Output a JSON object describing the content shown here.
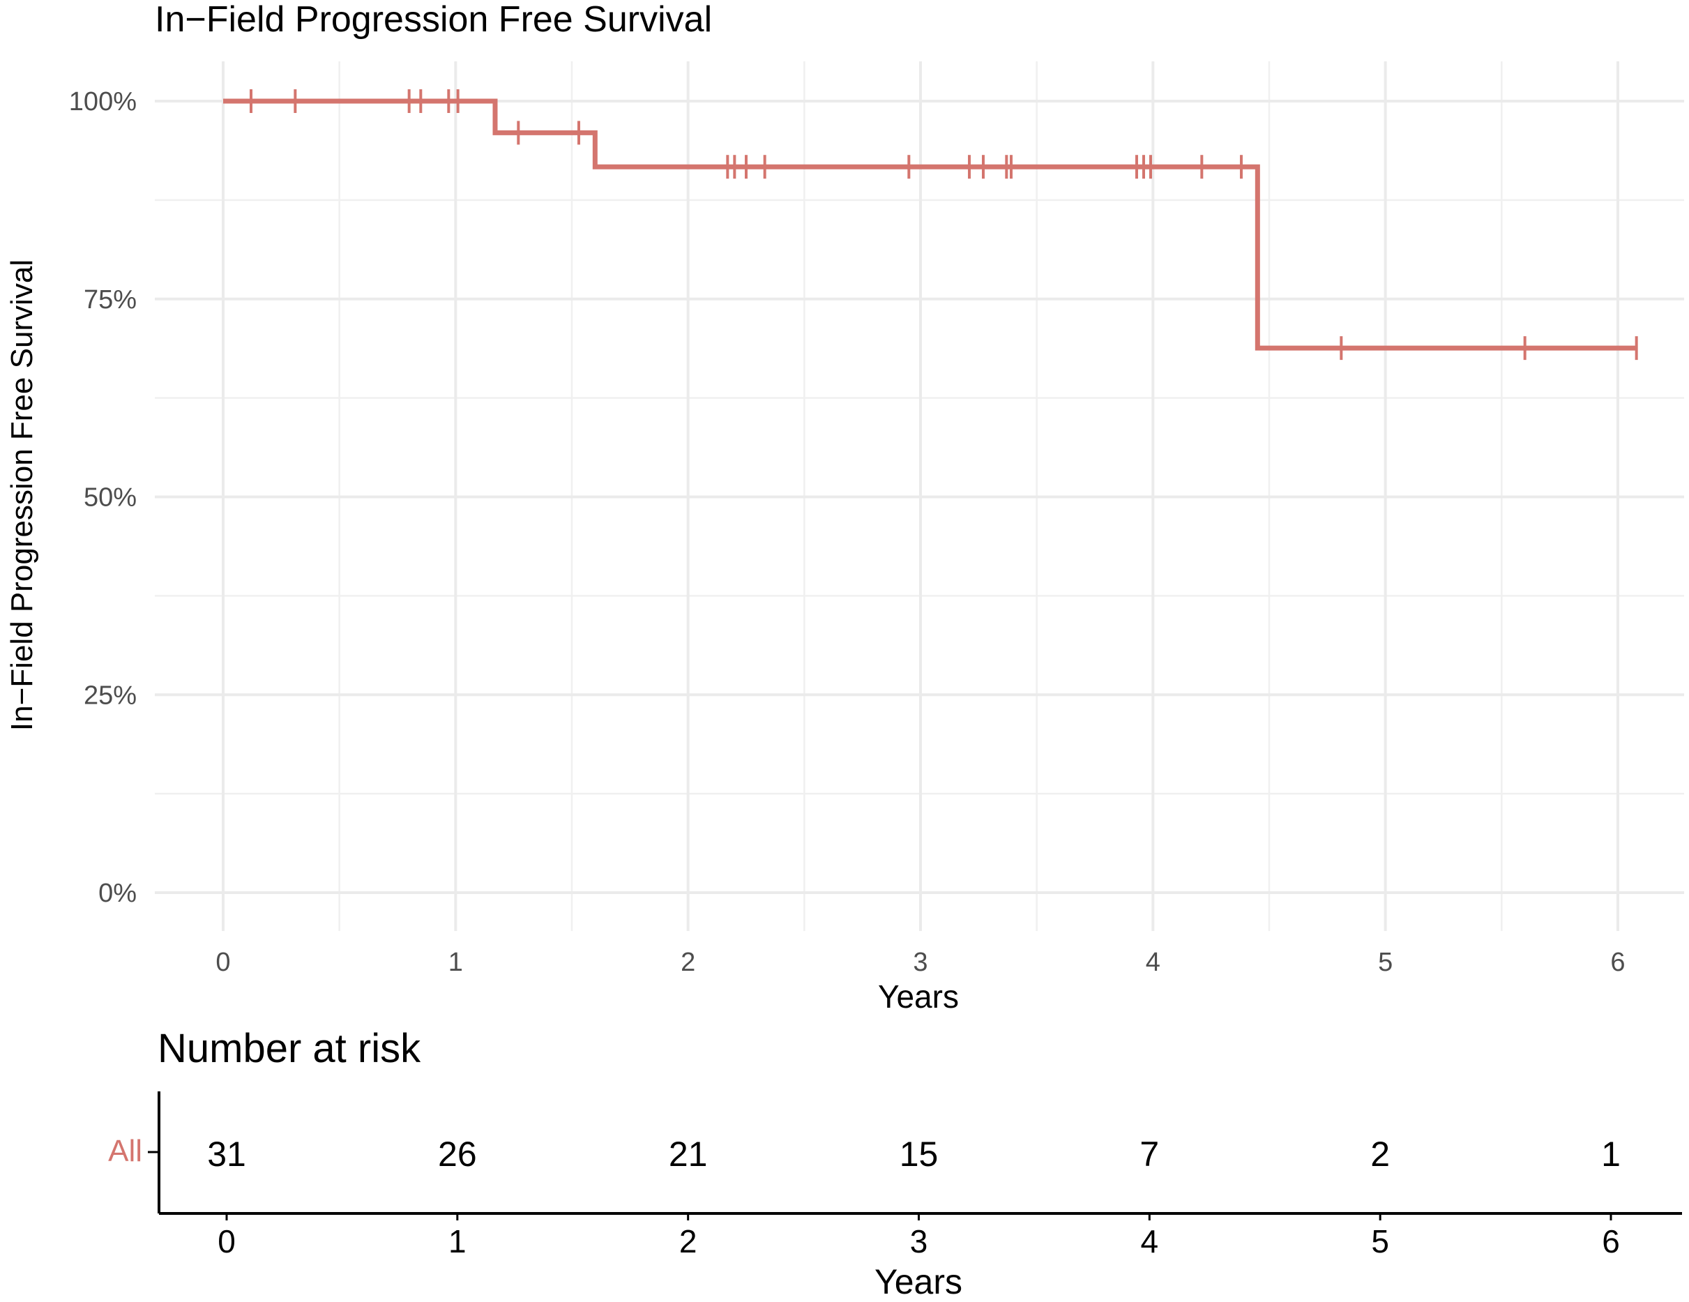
{
  "chart_data": [
    {
      "type": "line",
      "title": "In−Field Progression Free Survival",
      "xlabel": "Years",
      "ylabel": "In−Field Progression Free Survival",
      "xlim": [
        0,
        6
      ],
      "ylim": [
        0,
        1
      ],
      "x_ticks": [
        0,
        1,
        2,
        3,
        4,
        5,
        6
      ],
      "x_tick_labels": [
        "0",
        "1",
        "2",
        "3",
        "4",
        "5",
        "6"
      ],
      "y_ticks": [
        0,
        0.25,
        0.5,
        0.75,
        1.0
      ],
      "y_tick_labels": [
        "0%",
        "25%",
        "50%",
        "75%",
        "100%"
      ],
      "grid": true,
      "series": [
        {
          "name": "All",
          "color": "#d4756e",
          "steps": [
            {
              "x": 0,
              "y": 1.0
            },
            {
              "x": 1.17,
              "y": 0.96
            },
            {
              "x": 1.6,
              "y": 0.917
            },
            {
              "x": 4.45,
              "y": 0.688
            }
          ],
          "end_x": 6.08,
          "censor_times": [
            0.12,
            0.31,
            0.8,
            0.85,
            0.97,
            1.01,
            1.27,
            1.53,
            2.17,
            2.2,
            2.25,
            2.33,
            2.95,
            3.21,
            3.27,
            3.37,
            3.39,
            3.93,
            3.96,
            3.99,
            4.21,
            4.38,
            4.81,
            5.6,
            6.08
          ]
        }
      ]
    },
    {
      "type": "table",
      "title": "Number at risk",
      "xlabel": "Years",
      "x_ticks": [
        0,
        1,
        2,
        3,
        4,
        5,
        6
      ],
      "x_tick_labels": [
        "0",
        "1",
        "2",
        "3",
        "4",
        "5",
        "6"
      ],
      "rows": [
        {
          "label": "All",
          "color": "#d4756e",
          "values": [
            "31",
            "26",
            "21",
            "15",
            "7",
            "2",
            "1"
          ]
        }
      ]
    }
  ]
}
